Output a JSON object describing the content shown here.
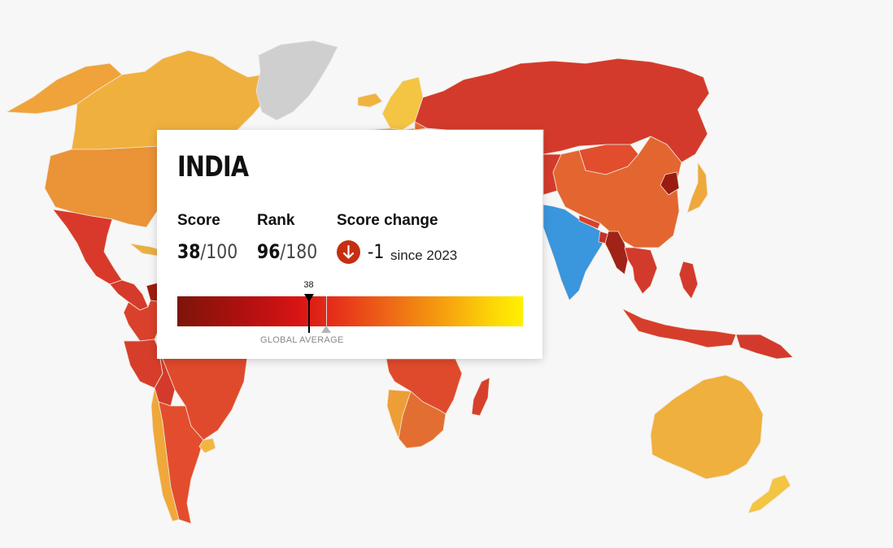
{
  "card": {
    "country": "INDIA",
    "score_label": "Score",
    "score": "38",
    "score_max": "/100",
    "rank_label": "Rank",
    "rank": "96",
    "rank_max": "/180",
    "change_label": "Score change",
    "change_direction": "down",
    "change_value": "-1",
    "change_since": "since 2023",
    "scale": {
      "min": 0,
      "max": 100,
      "marker_value": 38,
      "marker_label": "38",
      "average_value": 43,
      "average_label": "GLOBAL AVERAGE"
    }
  },
  "colors": {
    "highlight": "#3a96dd",
    "ocean": "#f7f7f7",
    "no_data": "#cfcfcf",
    "icon_bg": "#c62e12"
  },
  "map": {
    "selected": "India",
    "countries": [
      {
        "name": "Alaska",
        "color": "#efa33a"
      },
      {
        "name": "Canada",
        "color": "#f0b03e"
      },
      {
        "name": "Greenland",
        "color": "#cfcfcf"
      },
      {
        "name": "United States",
        "color": "#ea9337"
      },
      {
        "name": "Mexico",
        "color": "#d8392b"
      },
      {
        "name": "Central America",
        "color": "#d53a2b"
      },
      {
        "name": "Caribbean",
        "color": "#e8b040"
      },
      {
        "name": "Venezuela",
        "color": "#a01c10"
      },
      {
        "name": "Colombia",
        "color": "#d9412c"
      },
      {
        "name": "Brazil",
        "color": "#e04a2c"
      },
      {
        "name": "Peru",
        "color": "#d63e2b"
      },
      {
        "name": "Bolivia",
        "color": "#d33a2c"
      },
      {
        "name": "Chile",
        "color": "#efa839"
      },
      {
        "name": "Argentina",
        "color": "#e34d2e"
      },
      {
        "name": "Uruguay",
        "color": "#f2b53f"
      },
      {
        "name": "Iceland",
        "color": "#f0b33e"
      },
      {
        "name": "Scandinavia",
        "color": "#f4c443"
      },
      {
        "name": "Western Europe",
        "color": "#ee9e37"
      },
      {
        "name": "Eastern Europe",
        "color": "#e66a30"
      },
      {
        "name": "Russia",
        "color": "#d33a2c"
      },
      {
        "name": "Mongolia",
        "color": "#e24d2e"
      },
      {
        "name": "China",
        "color": "#e36630"
      },
      {
        "name": "Korea",
        "color": "#9a1c10"
      },
      {
        "name": "Japan",
        "color": "#efa83b"
      },
      {
        "name": "Central Asia",
        "color": "#d33a2c"
      },
      {
        "name": "India",
        "color": "#3a96dd"
      },
      {
        "name": "Nepal",
        "color": "#d6412c"
      },
      {
        "name": "Bangladesh",
        "color": "#c8302a"
      },
      {
        "name": "Myanmar",
        "color": "#a02318"
      },
      {
        "name": "Southeast Asia",
        "color": "#d23a2c"
      },
      {
        "name": "Philippines",
        "color": "#d33a2c"
      },
      {
        "name": "Indonesia",
        "color": "#d63e2b"
      },
      {
        "name": "Papua New Guinea",
        "color": "#d33a2c"
      },
      {
        "name": "Australia",
        "color": "#efb03e"
      },
      {
        "name": "New Zealand",
        "color": "#f4c443"
      },
      {
        "name": "Africa",
        "color": "#e04a2c"
      },
      {
        "name": "Southern Africa",
        "color": "#e36e31"
      },
      {
        "name": "Namibia",
        "color": "#ee9e37"
      },
      {
        "name": "Madagascar",
        "color": "#d6412c"
      }
    ]
  }
}
